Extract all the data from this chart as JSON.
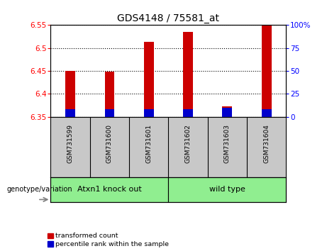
{
  "title": "GDS4148 / 75581_at",
  "samples": [
    "GSM731599",
    "GSM731600",
    "GSM731601",
    "GSM731602",
    "GSM731603",
    "GSM731604"
  ],
  "red_values": [
    6.45,
    6.449,
    6.513,
    6.535,
    6.372,
    6.55
  ],
  "blue_values": [
    6.366,
    6.366,
    6.367,
    6.366,
    6.37,
    6.366
  ],
  "baseline": 6.35,
  "ylim_left": [
    6.35,
    6.55
  ],
  "ylim_right": [
    0,
    100
  ],
  "yticks_left": [
    6.35,
    6.4,
    6.45,
    6.5,
    6.55
  ],
  "yticks_right": [
    0,
    25,
    50,
    75,
    100
  ],
  "ytick_labels_left": [
    "6.35",
    "6.4",
    "6.45",
    "6.5",
    "6.55"
  ],
  "ytick_labels_right": [
    "0",
    "25",
    "50",
    "75",
    "100%"
  ],
  "groups": [
    {
      "label": "Atxn1 knock out",
      "start": 0,
      "end": 3,
      "color": "#90EE90"
    },
    {
      "label": "wild type",
      "start": 3,
      "end": 6,
      "color": "#90EE90"
    }
  ],
  "group_header": "genotype/variation",
  "red_color": "#CC0000",
  "blue_color": "#0000CC",
  "legend_red": "transformed count",
  "legend_blue": "percentile rank within the sample",
  "bar_width": 0.25,
  "label_bg": "#C8C8C8",
  "title_fontsize": 10
}
